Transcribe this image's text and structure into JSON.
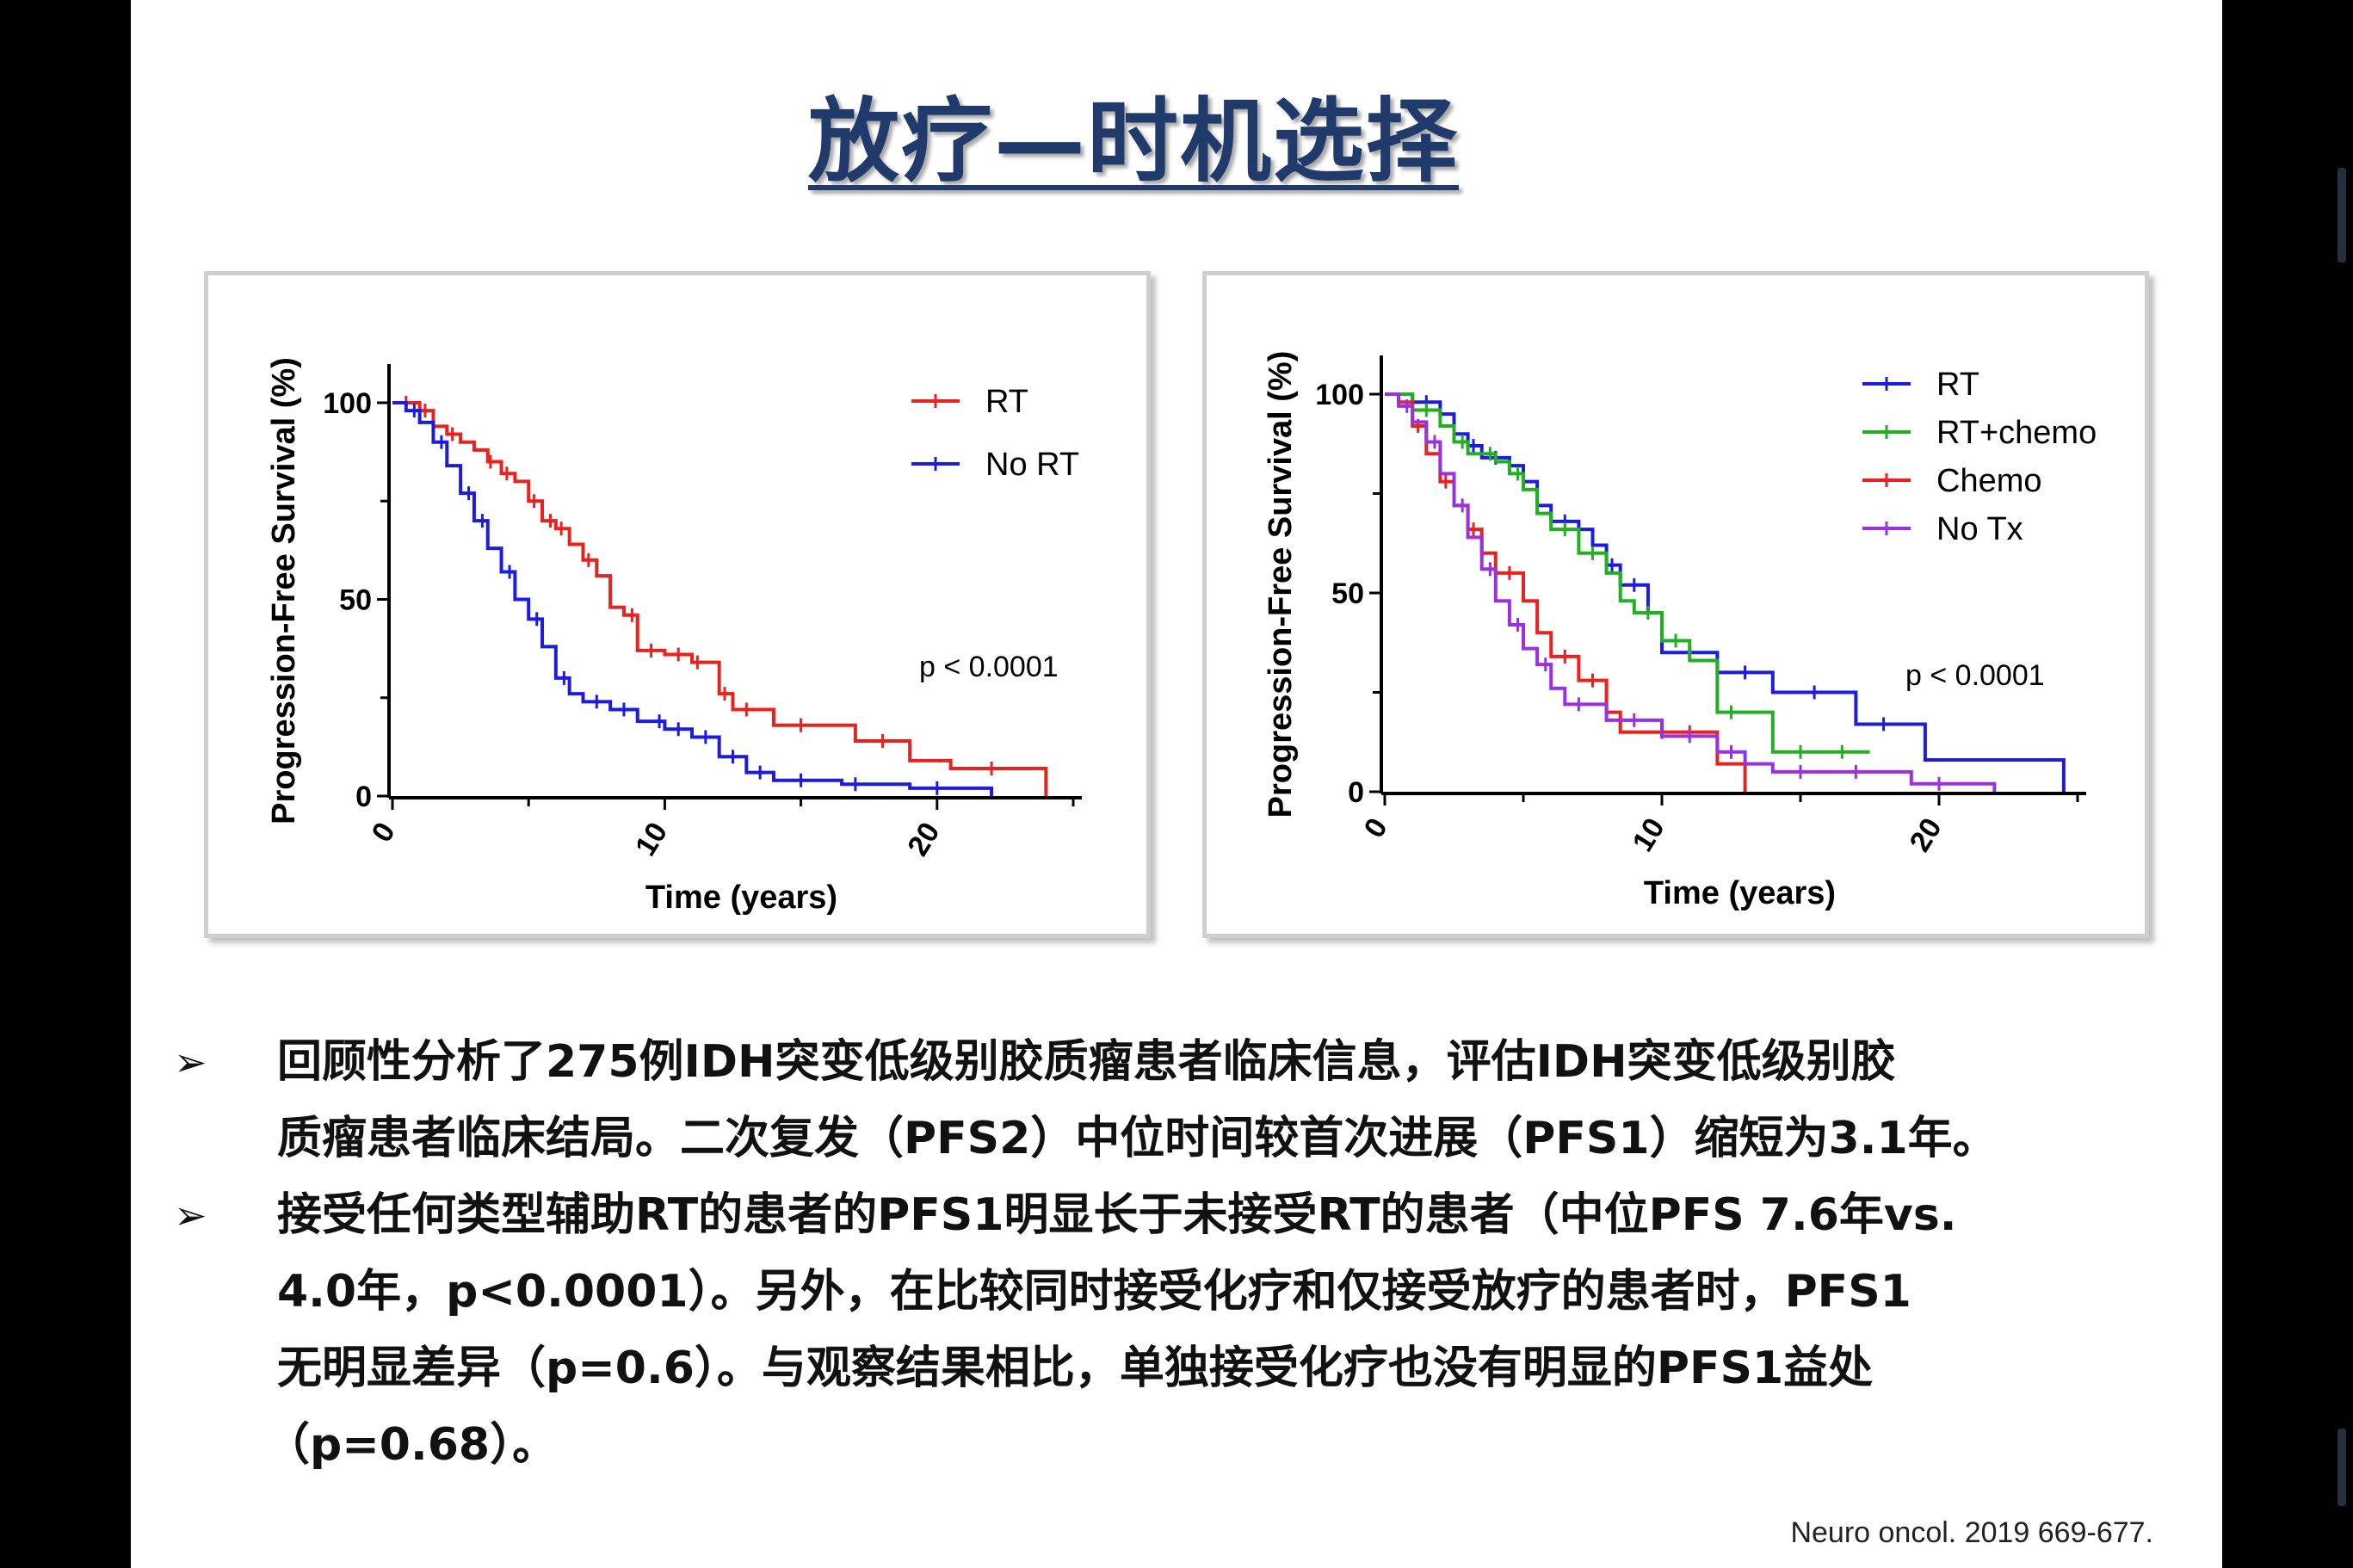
{
  "slide": {
    "title": "放疗—时机选择",
    "citation": "Neuro oncol. 2019 669-677."
  },
  "bullets": [
    {
      "marker": "➢",
      "lines": [
        "回顾性分析了275例IDH突变低级别胶质瘤患者临床信息，评估IDH突变低级别胶",
        "质瘤患者临床结局。二次复发（PFS2）中位时间较首次进展（PFS1）缩短为3.1年。"
      ]
    },
    {
      "marker": "➢",
      "lines": [
        "接受任何类型辅助RT的患者的PFS1明显长于未接受RT的患者（中位PFS 7.6年vs.",
        "4.0年，p<0.0001）。另外，在比较同时接受化疗和仅接受放疗的患者时，PFS1",
        "无明显差异（p=0.6）。与观察结果相比，单独接受化疗也没有明显的PFS1益处",
        "（p=0.68）。"
      ]
    }
  ],
  "colors": {
    "title": "#1f3a6b",
    "red": "#e8231f",
    "blue": "#1c1ce0",
    "green": "#22b022",
    "purple": "#9b30e0"
  },
  "chart_data": [
    {
      "type": "line",
      "subtype": "kaplan-meier",
      "xlabel": "Time (years)",
      "ylabel": "Progression-Free Survival (%)",
      "xlim": [
        0,
        25
      ],
      "ylim": [
        0,
        100
      ],
      "xticks": [
        0,
        10,
        20
      ],
      "yticks": [
        0,
        50,
        100
      ],
      "legend_position": "top-right",
      "annotation": "p < 0.0001",
      "series": [
        {
          "name": "RT",
          "color": "#e8231f",
          "steps": [
            [
              0,
              100
            ],
            [
              1,
              98
            ],
            [
              1.5,
              94
            ],
            [
              2,
              92
            ],
            [
              2.5,
              90
            ],
            [
              3,
              88
            ],
            [
              3.5,
              85
            ],
            [
              4,
              82
            ],
            [
              4.5,
              80
            ],
            [
              5,
              75
            ],
            [
              5.5,
              70
            ],
            [
              6,
              68
            ],
            [
              6.5,
              64
            ],
            [
              7,
              60
            ],
            [
              7.5,
              56
            ],
            [
              8,
              48
            ],
            [
              8.5,
              46
            ],
            [
              9,
              37
            ],
            [
              10,
              36
            ],
            [
              11,
              34
            ],
            [
              12,
              26
            ],
            [
              12.5,
              22
            ],
            [
              14,
              18
            ],
            [
              17,
              14
            ],
            [
              19,
              9
            ],
            [
              20.5,
              7
            ],
            [
              24,
              0
            ]
          ],
          "censor_x": [
            0.5,
            1.2,
            2.2,
            3.6,
            4.2,
            5.2,
            5.8,
            6.2,
            7.2,
            8.8,
            9.5,
            10.5,
            11.2,
            12.2,
            13,
            15,
            18,
            22
          ]
        },
        {
          "name": "No RT",
          "color": "#1c1ce0",
          "steps": [
            [
              0,
              100
            ],
            [
              0.5,
              98
            ],
            [
              1,
              95
            ],
            [
              1.5,
              90
            ],
            [
              2,
              84
            ],
            [
              2.5,
              77
            ],
            [
              3,
              70
            ],
            [
              3.5,
              63
            ],
            [
              4,
              57
            ],
            [
              4.5,
              50
            ],
            [
              5,
              45
            ],
            [
              5.5,
              38
            ],
            [
              6,
              30
            ],
            [
              6.5,
              26
            ],
            [
              7,
              24
            ],
            [
              8,
              22
            ],
            [
              9,
              19
            ],
            [
              10,
              17
            ],
            [
              11,
              15
            ],
            [
              12,
              10
            ],
            [
              13,
              6
            ],
            [
              14,
              4
            ],
            [
              16.5,
              3
            ],
            [
              19,
              2
            ],
            [
              22,
              0
            ]
          ],
          "censor_x": [
            0.8,
            1.8,
            2.8,
            3.3,
            4.3,
            5.3,
            6.3,
            7.5,
            8.5,
            9.8,
            10.5,
            11.5,
            12.5,
            13.5,
            15,
            17,
            20
          ]
        }
      ]
    },
    {
      "type": "line",
      "subtype": "kaplan-meier",
      "xlabel": "Time (years)",
      "ylabel": "Progression-Free Survival (%)",
      "xlim": [
        0,
        25
      ],
      "ylim": [
        0,
        100
      ],
      "xticks": [
        0,
        10,
        20
      ],
      "yticks": [
        0,
        50,
        100
      ],
      "legend_position": "top-right",
      "annotation": "p < 0.0001",
      "series": [
        {
          "name": "RT",
          "color": "#1c1ce0",
          "steps": [
            [
              0,
              100
            ],
            [
              1,
              98
            ],
            [
              2,
              95
            ],
            [
              2.5,
              90
            ],
            [
              3,
              87
            ],
            [
              3.5,
              84
            ],
            [
              4.5,
              82
            ],
            [
              5,
              78
            ],
            [
              5.5,
              72
            ],
            [
              6,
              68
            ],
            [
              7,
              66
            ],
            [
              7.5,
              62
            ],
            [
              8,
              57
            ],
            [
              8.5,
              52
            ],
            [
              9.5,
              45
            ],
            [
              10,
              35
            ],
            [
              12,
              30
            ],
            [
              14,
              25
            ],
            [
              17,
              17
            ],
            [
              19.5,
              8
            ],
            [
              24.5,
              0
            ]
          ],
          "censor_x": [
            1.5,
            3.2,
            4,
            6.5,
            8.2,
            9,
            11,
            13,
            15.5,
            18
          ]
        },
        {
          "name": "RT+chemo",
          "color": "#22b022",
          "steps": [
            [
              0,
              100
            ],
            [
              1,
              96
            ],
            [
              2,
              92
            ],
            [
              2.5,
              88
            ],
            [
              3,
              85
            ],
            [
              4,
              83
            ],
            [
              4.5,
              80
            ],
            [
              5,
              76
            ],
            [
              5.5,
              70
            ],
            [
              6,
              66
            ],
            [
              7,
              60
            ],
            [
              8,
              55
            ],
            [
              8.5,
              48
            ],
            [
              9,
              45
            ],
            [
              10,
              38
            ],
            [
              11,
              33
            ],
            [
              12,
              20
            ],
            [
              14,
              10
            ],
            [
              17.5,
              10
            ]
          ],
          "censor_x": [
            1.5,
            2.8,
            3.8,
            4.8,
            6.5,
            7.5,
            9.5,
            10.5,
            12.5,
            15,
            16.5
          ]
        },
        {
          "name": "Chemo",
          "color": "#e8231f",
          "steps": [
            [
              0,
              100
            ],
            [
              0.5,
              98
            ],
            [
              1,
              92
            ],
            [
              1.5,
              85
            ],
            [
              2,
              78
            ],
            [
              2.5,
              72
            ],
            [
              3,
              66
            ],
            [
              3.5,
              60
            ],
            [
              4,
              55
            ],
            [
              5,
              48
            ],
            [
              5.5,
              40
            ],
            [
              6,
              34
            ],
            [
              7,
              28
            ],
            [
              8,
              20
            ],
            [
              8.5,
              15
            ],
            [
              12,
              7
            ],
            [
              13,
              0
            ]
          ],
          "censor_x": [
            1.2,
            2.2,
            3.2,
            4.5,
            6.5,
            7.5,
            10,
            11
          ]
        },
        {
          "name": "No Tx",
          "color": "#9b30e0",
          "steps": [
            [
              0,
              100
            ],
            [
              0.5,
              97
            ],
            [
              1,
              93
            ],
            [
              1.5,
              88
            ],
            [
              2,
              80
            ],
            [
              2.5,
              72
            ],
            [
              3,
              64
            ],
            [
              3.5,
              56
            ],
            [
              4,
              48
            ],
            [
              4.5,
              42
            ],
            [
              5,
              36
            ],
            [
              5.5,
              32
            ],
            [
              6,
              26
            ],
            [
              6.5,
              22
            ],
            [
              8,
              18
            ],
            [
              10,
              14
            ],
            [
              12,
              10
            ],
            [
              13,
              7
            ],
            [
              14,
              5
            ],
            [
              19,
              2
            ],
            [
              22,
              0
            ]
          ],
          "censor_x": [
            0.8,
            1.8,
            2.8,
            3.8,
            4.8,
            5.8,
            7,
            9,
            11,
            12.5,
            15,
            17,
            20
          ]
        }
      ]
    }
  ]
}
